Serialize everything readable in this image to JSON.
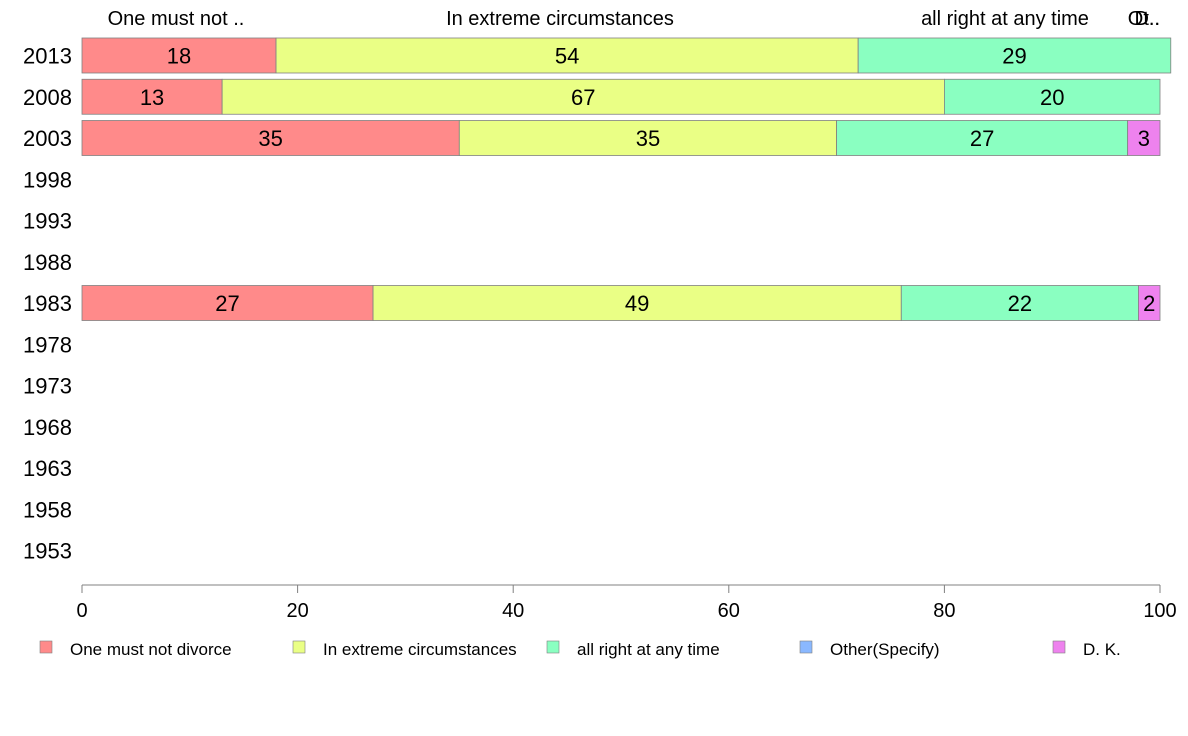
{
  "chart_data": {
    "type": "bar",
    "orientation": "horizontal",
    "stacked": true,
    "categories": [
      "2013",
      "2008",
      "2003",
      "1998",
      "1993",
      "1988",
      "1983",
      "1978",
      "1973",
      "1968",
      "1963",
      "1958",
      "1953"
    ],
    "series": [
      {
        "name": "One must not divorce",
        "color": "#ff8a8a",
        "values": [
          18,
          13,
          35,
          null,
          null,
          null,
          27,
          null,
          null,
          null,
          null,
          null,
          null
        ],
        "labels": [
          "18",
          "13",
          "35",
          "",
          "",
          "",
          "27",
          "",
          "",
          "",
          "",
          "",
          ""
        ]
      },
      {
        "name": "In extreme circumstances",
        "color": "#eaff85",
        "values": [
          54,
          67,
          35,
          null,
          null,
          null,
          49,
          null,
          null,
          null,
          null,
          null,
          null
        ],
        "labels": [
          "54",
          "67",
          "35",
          "",
          "",
          "",
          "49",
          "",
          "",
          "",
          "",
          "",
          ""
        ]
      },
      {
        "name": "all right at any time",
        "color": "#8affc1",
        "values": [
          29,
          20,
          27,
          null,
          null,
          null,
          22,
          null,
          null,
          null,
          null,
          null,
          null
        ],
        "labels": [
          "29",
          "20",
          "27",
          "",
          "",
          "",
          "22",
          "",
          "",
          "",
          "",
          "",
          ""
        ]
      },
      {
        "name": "Other(Specify)",
        "color": "#8ab8ff",
        "values": [
          0,
          0,
          0,
          null,
          null,
          null,
          0,
          null,
          null,
          null,
          null,
          null,
          null
        ],
        "labels": [
          "",
          "",
          "",
          "",
          "",
          "",
          "",
          "",
          "",
          "",
          "",
          "",
          ""
        ]
      },
      {
        "name": "D. K.",
        "color": "#ee82ee",
        "values": [
          0,
          0,
          3,
          null,
          null,
          null,
          2,
          null,
          null,
          null,
          null,
          null,
          null
        ],
        "labels": [
          "",
          "",
          "3",
          "",
          "",
          "",
          "2",
          "",
          "",
          "",
          "",
          "",
          ""
        ]
      }
    ],
    "top_labels": [
      "One must not ..",
      "In extreme circumstances",
      "all right at any time",
      "Other(Specify)",
      "D. K."
    ],
    "xticks": [
      "0",
      "20",
      "40",
      "60",
      "80",
      "100"
    ],
    "xlim": [
      0,
      100
    ],
    "title": "",
    "xlabel": "",
    "ylabel": "",
    "grid": false,
    "legend_position": "bottom"
  }
}
